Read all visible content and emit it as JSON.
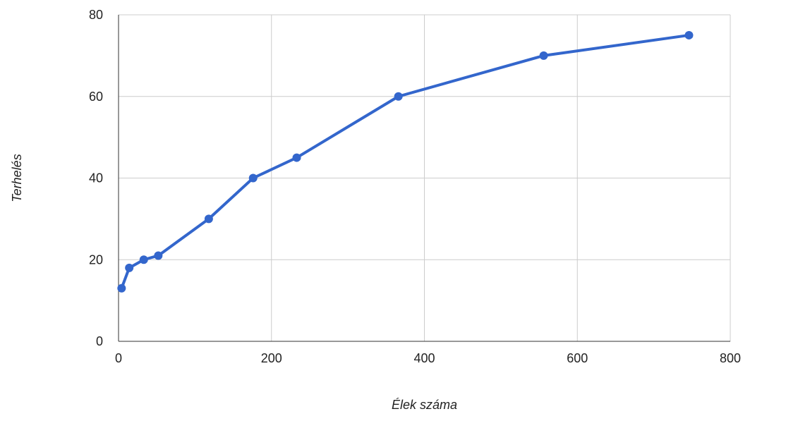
{
  "chart_data": {
    "type": "line",
    "xlabel": "Élek száma",
    "ylabel": "Terhelés",
    "xlim": [
      0,
      800
    ],
    "ylim": [
      0,
      80
    ],
    "x_ticks": [
      0,
      200,
      400,
      600,
      800
    ],
    "y_ticks": [
      0,
      20,
      40,
      60,
      80
    ],
    "x_tick_labels": [
      "0",
      "200",
      "400",
      "600",
      "800"
    ],
    "y_tick_labels": [
      "0",
      "20",
      "40",
      "60",
      "80"
    ],
    "grid": true,
    "legend": "none",
    "series": [
      {
        "color": "#3366cc",
        "points": [
          {
            "x": 4,
            "y": 13
          },
          {
            "x": 14,
            "y": 18
          },
          {
            "x": 33,
            "y": 20
          },
          {
            "x": 52,
            "y": 21
          },
          {
            "x": 118,
            "y": 30
          },
          {
            "x": 176,
            "y": 40
          },
          {
            "x": 233,
            "y": 45
          },
          {
            "x": 366,
            "y": 60
          },
          {
            "x": 556,
            "y": 70
          },
          {
            "x": 746,
            "y": 75
          }
        ]
      }
    ]
  }
}
